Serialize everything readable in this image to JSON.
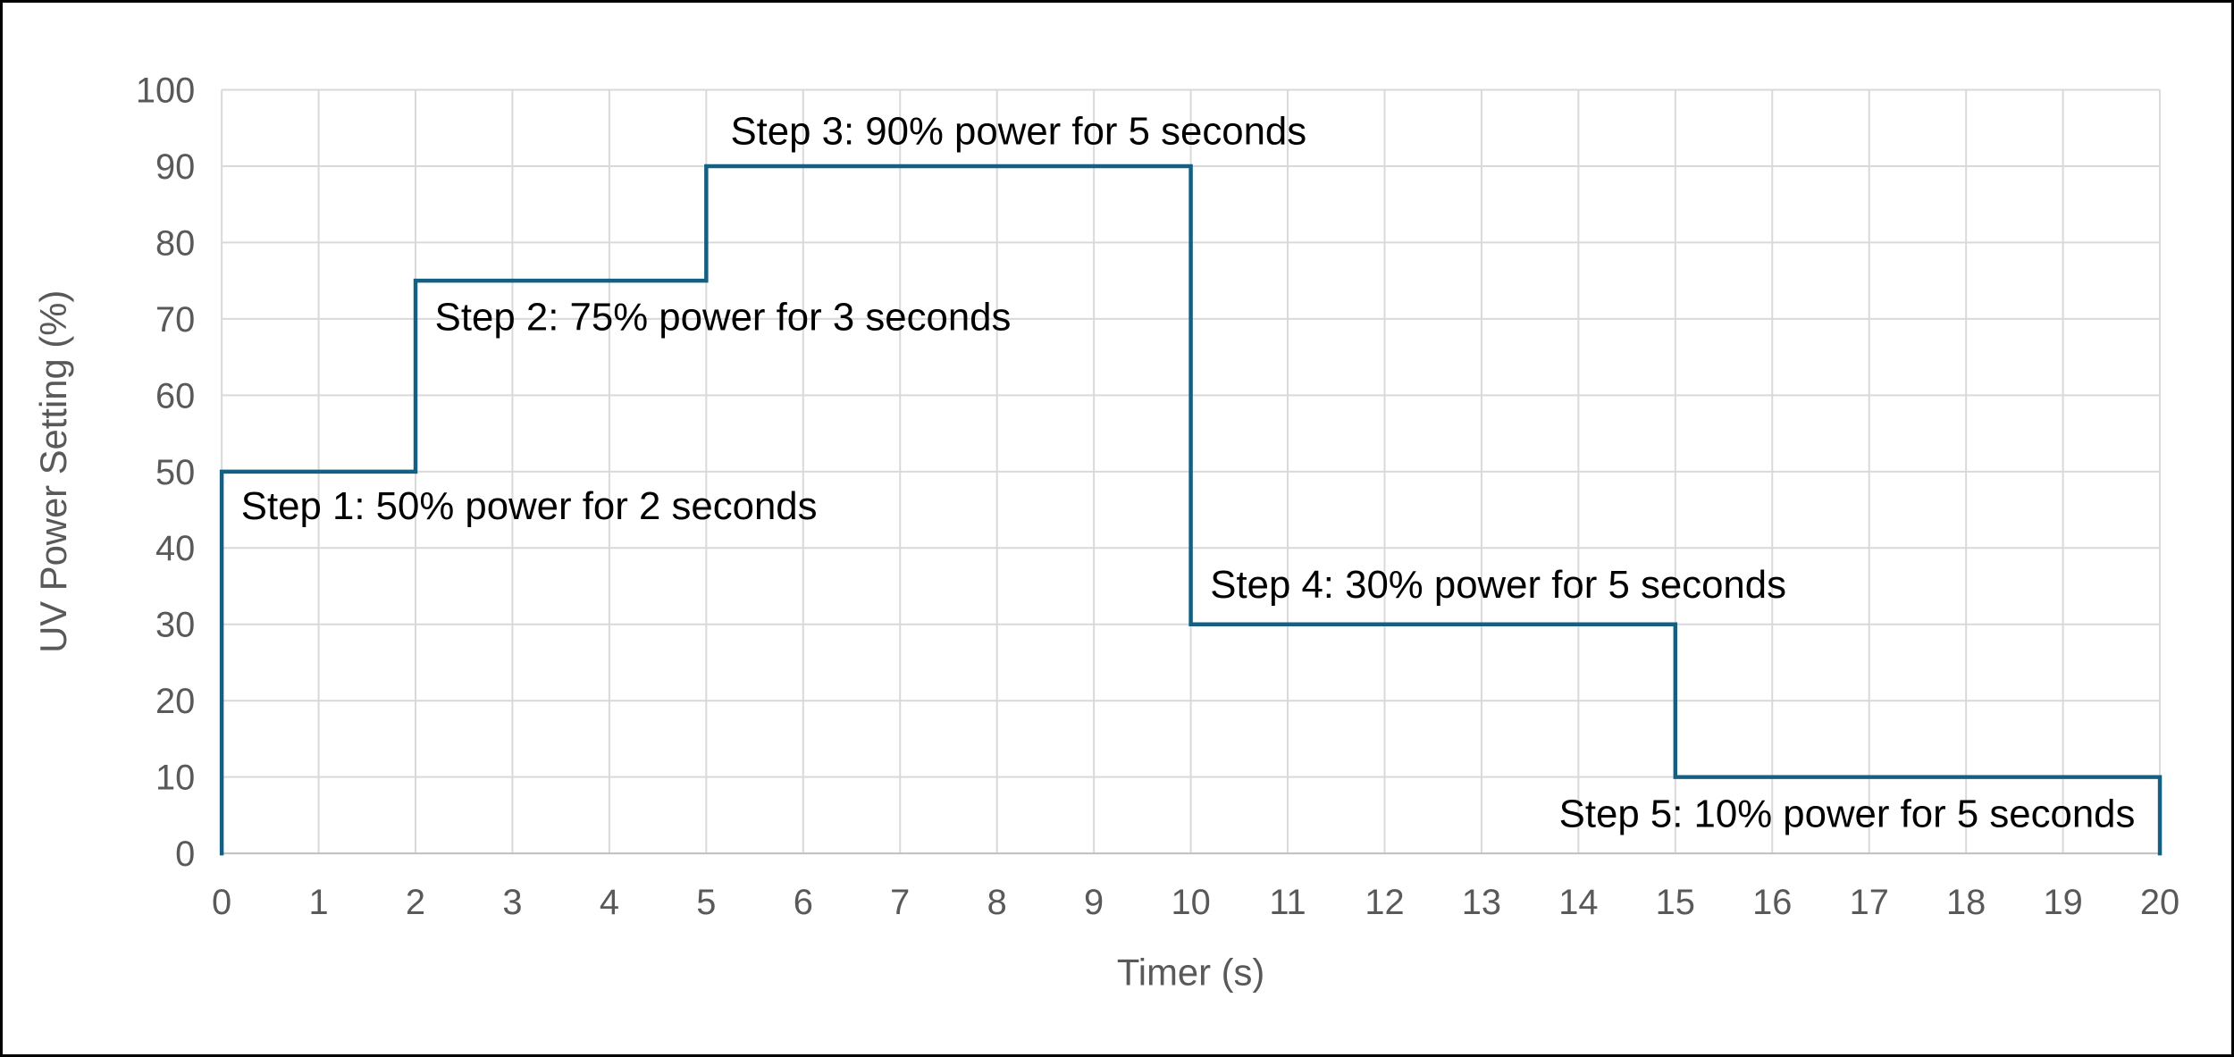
{
  "frame": {
    "background": "#FFFFFF",
    "border_color": "#000000"
  },
  "chart_data": {
    "type": "line",
    "subtype": "step",
    "title": "",
    "xlabel": "Timer (s)",
    "ylabel": "UV Power Setting (%)",
    "xlim": [
      0,
      20
    ],
    "ylim": [
      0,
      100
    ],
    "x_ticks": [
      0,
      1,
      2,
      3,
      4,
      5,
      6,
      7,
      8,
      9,
      10,
      11,
      12,
      13,
      14,
      15,
      16,
      17,
      18,
      19,
      20
    ],
    "y_ticks": [
      0,
      10,
      20,
      30,
      40,
      50,
      60,
      70,
      80,
      90,
      100
    ],
    "grid": "both",
    "legend": "none",
    "colors": {
      "line": "#156082",
      "grid": "#D9D9D9",
      "axis_line": "#BFBFBF",
      "tick_label": "#595959",
      "axis_title": "#595959",
      "annotation_text": "#000000"
    },
    "steps": [
      {
        "step": 1,
        "power_pct": 50,
        "duration_s": 2,
        "start_s": 0,
        "end_s": 2
      },
      {
        "step": 2,
        "power_pct": 75,
        "duration_s": 3,
        "start_s": 2,
        "end_s": 5
      },
      {
        "step": 3,
        "power_pct": 90,
        "duration_s": 5,
        "start_s": 5,
        "end_s": 10
      },
      {
        "step": 4,
        "power_pct": 30,
        "duration_s": 5,
        "start_s": 10,
        "end_s": 15
      },
      {
        "step": 5,
        "power_pct": 10,
        "duration_s": 5,
        "start_s": 15,
        "end_s": 20
      }
    ],
    "series": [
      {
        "name": "UV Power Setting",
        "points": [
          [
            0,
            0
          ],
          [
            0,
            50
          ],
          [
            2,
            50
          ],
          [
            2,
            75
          ],
          [
            5,
            75
          ],
          [
            5,
            90
          ],
          [
            10,
            90
          ],
          [
            10,
            30
          ],
          [
            15,
            30
          ],
          [
            15,
            10
          ],
          [
            20,
            10
          ],
          [
            20,
            0
          ]
        ]
      }
    ],
    "annotations": [
      {
        "text": "Step 1: 50% power for 2 seconds",
        "x": 0.2,
        "y": 45.5
      },
      {
        "text": "Step 2: 75% power for 3 seconds",
        "x": 2.2,
        "y": 70.3
      },
      {
        "text": "Step 3: 90% power for 5 seconds",
        "x": 5.25,
        "y": 94.6
      },
      {
        "text": "Step 4: 30% power for 5 seconds",
        "x": 10.2,
        "y": 35.2
      },
      {
        "text": "Step 5: 10% power for 5 seconds",
        "x": 13.8,
        "y": 5.2
      }
    ]
  }
}
